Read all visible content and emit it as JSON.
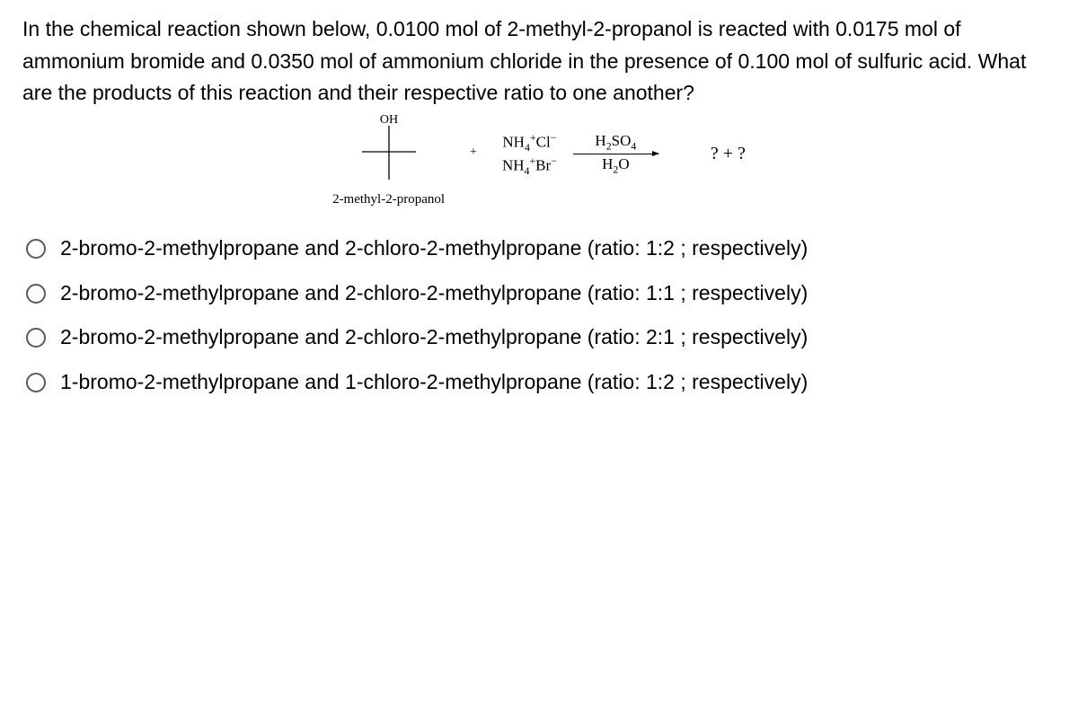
{
  "question": "In the chemical reaction shown below, 0.0100 mol of 2-methyl-2-propanol is reacted with 0.0175 mol of ammonium bromide and 0.0350 mol of ammonium chloride in the presence of 0.100 mol of sulfuric acid. What are the products of this reaction and their respective ratio to one another?",
  "scheme": {
    "oh_label": "OH",
    "molecule_caption": "2-methyl-2-propanol",
    "plus_reagents": "+",
    "reagent1_html": "NH<span class='sub'>4</span><span class='sup'>+</span>Cl<span class='sup'>−</span>",
    "reagent2_html": "NH<span class='sub'>4</span><span class='sup'>+</span>Br<span class='sup'>−</span>",
    "arrow_top_html": "H<span class='sub'>2</span>SO<span class='sub'>4</span>",
    "arrow_bottom_html": "H<span class='sub'>2</span>O",
    "products_text": "?  + ?"
  },
  "options": [
    "2-bromo-2-methylpropane and 2-chloro-2-methylpropane (ratio: 1:2 ; respectively)",
    "2-bromo-2-methylpropane and 2-chloro-2-methylpropane (ratio: 1:1 ; respectively)",
    "2-bromo-2-methylpropane and 2-chloro-2-methylpropane (ratio: 2:1 ; respectively)",
    "1-bromo-2-methylpropane and 1-chloro-2-methylpropane (ratio: 1:2 ; respectively)"
  ]
}
